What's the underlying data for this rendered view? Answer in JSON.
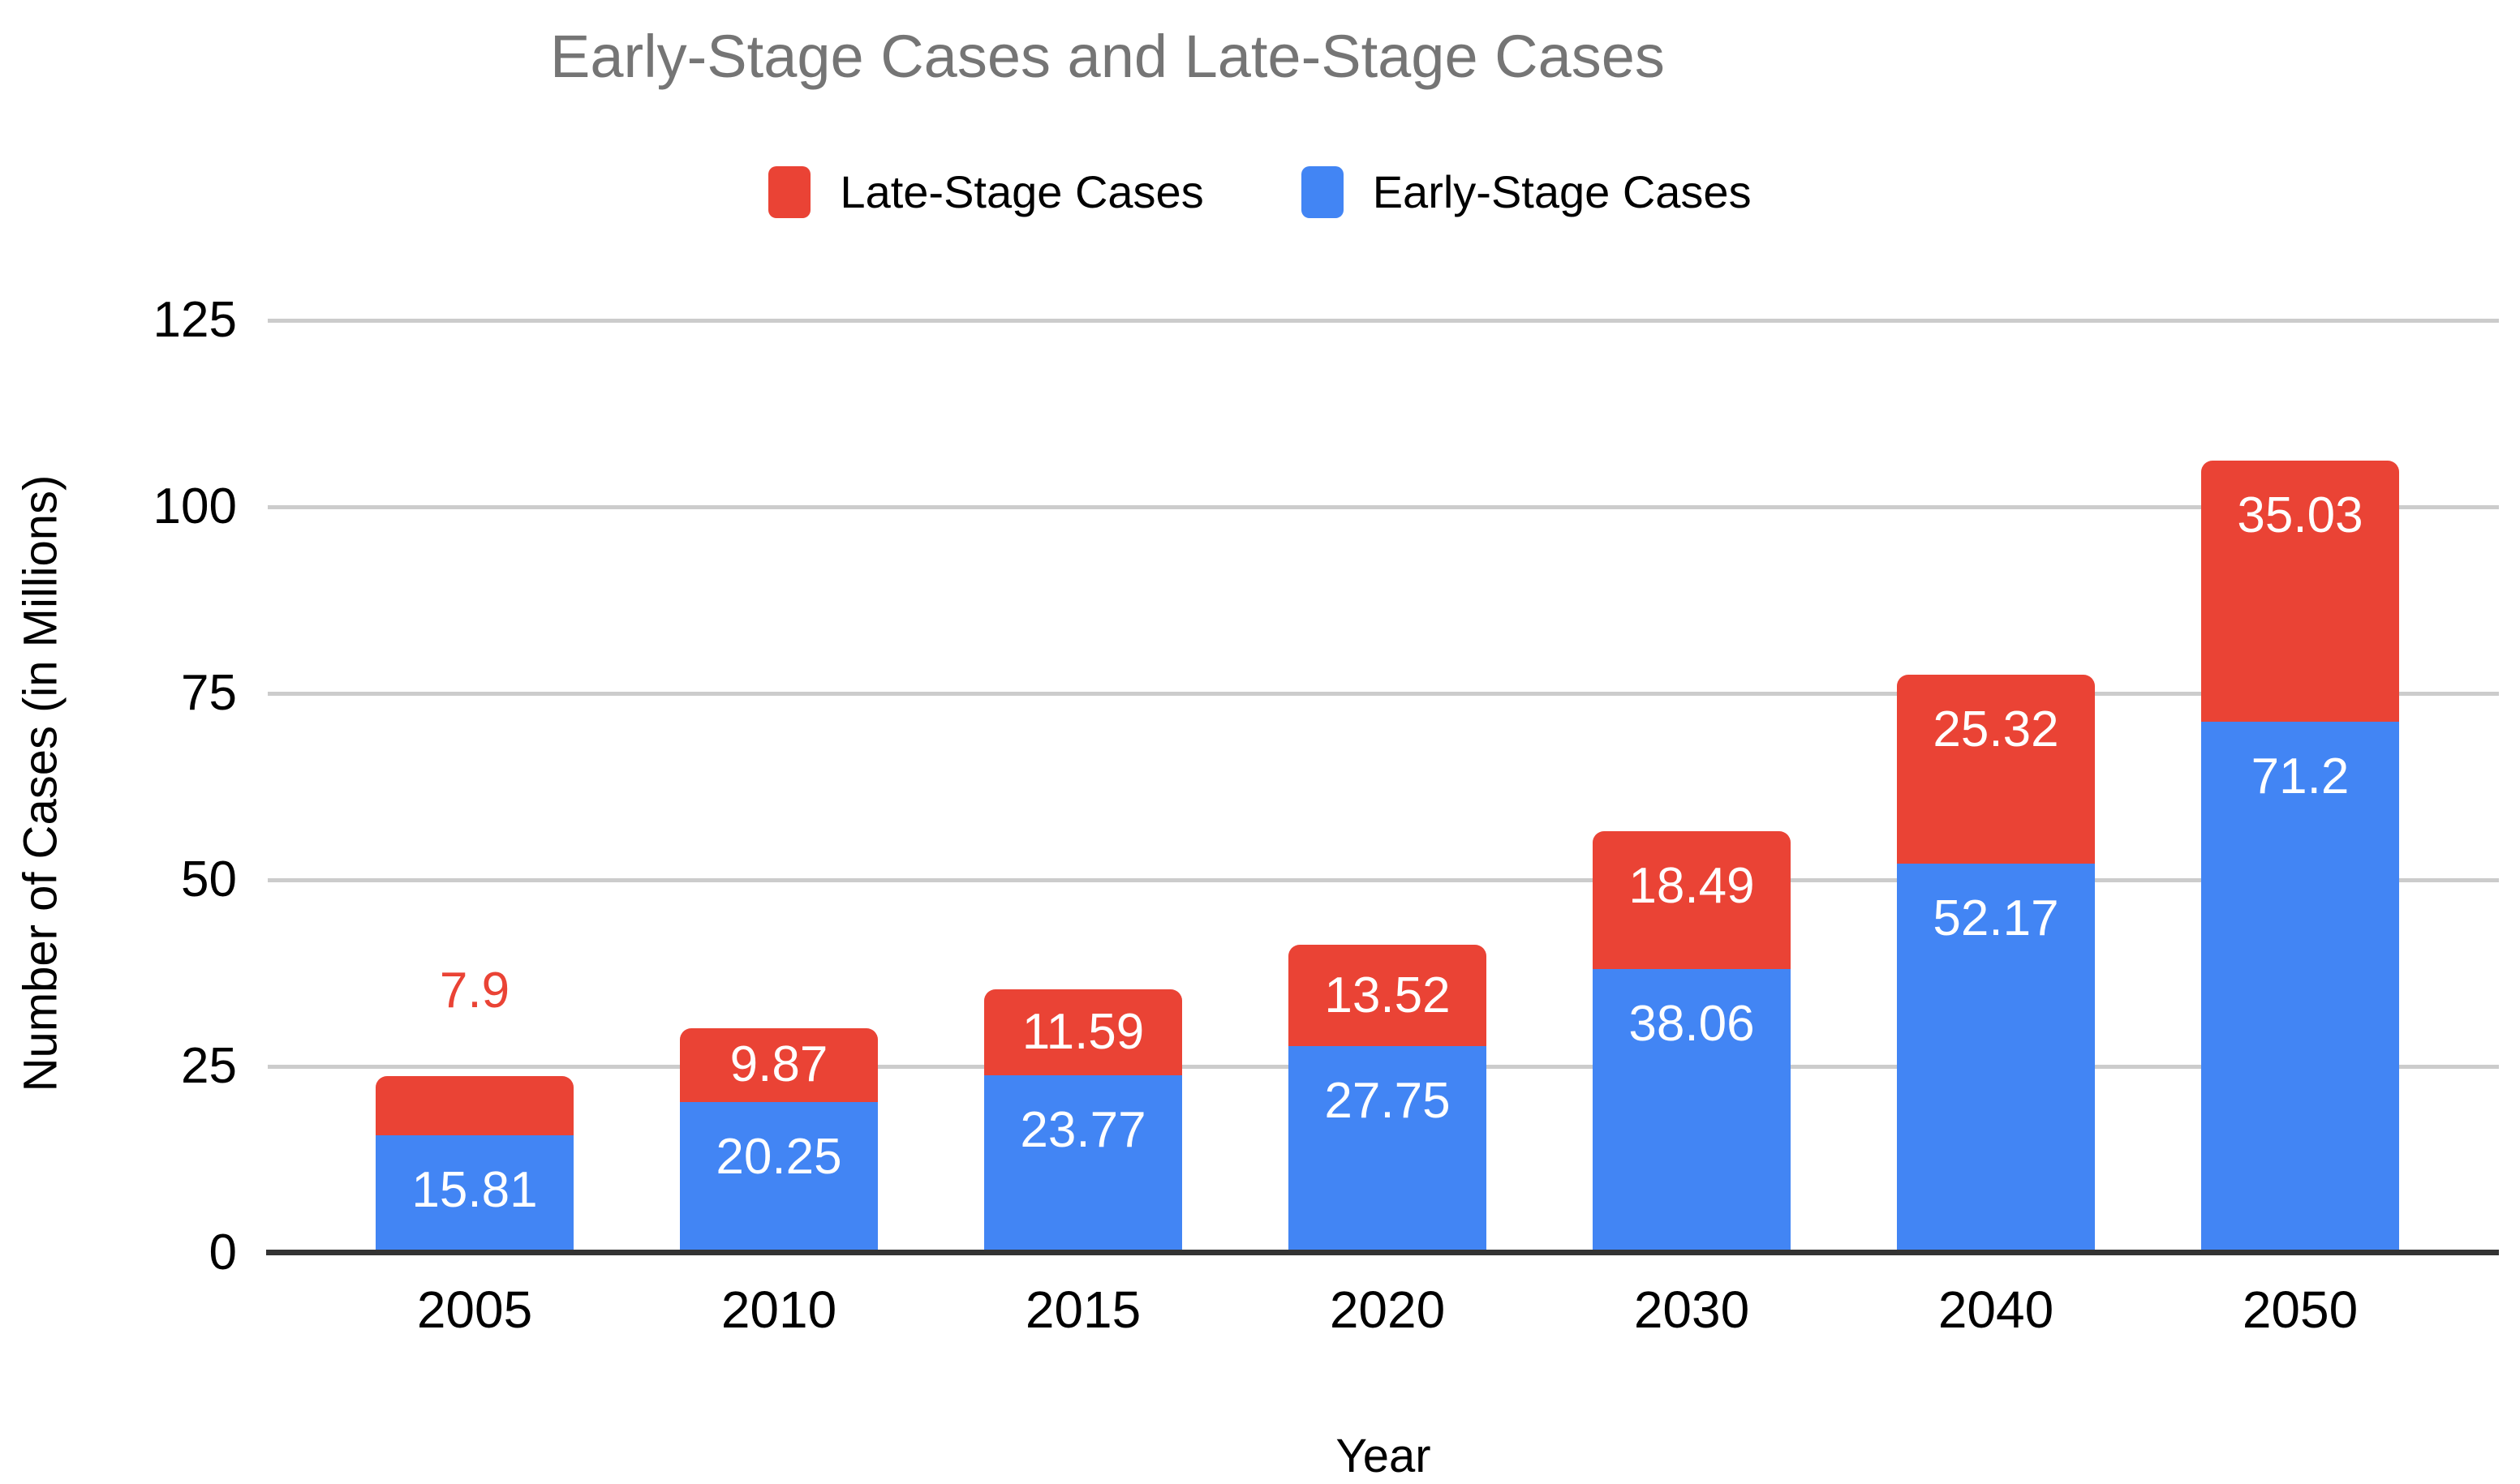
{
  "legend": [
    {
      "label": "Late-Stage Cases",
      "color": "#EA4335"
    },
    {
      "label": "Early-Stage Cases",
      "color": "#4285F4"
    }
  ],
  "colors": {
    "title_text": "#757575",
    "axis_text": "#000000",
    "gridline": "#cccccc",
    "baseline": "#333333",
    "late_stage": "#EA4335",
    "early_stage": "#4285F4",
    "label_inside": "#ffffff",
    "background": "#ffffff"
  },
  "chart_data": {
    "type": "bar",
    "stacked": true,
    "title": "Early-Stage Cases and Late-Stage Cases",
    "xlabel": "Year",
    "ylabel": "Number of Cases (in Millions)",
    "categories": [
      "2005",
      "2010",
      "2015",
      "2020",
      "2030",
      "2040",
      "2050"
    ],
    "series": [
      {
        "name": "Early-Stage Cases",
        "color": "#4285F4",
        "label_color": "#ffffff",
        "values": [
          15.81,
          20.25,
          23.77,
          27.75,
          38.06,
          52.17,
          71.2
        ]
      },
      {
        "name": "Late-Stage Cases",
        "color": "#EA4335",
        "label_color": "#ffffff",
        "values": [
          7.9,
          9.87,
          11.59,
          13.52,
          18.49,
          25.32,
          35.03
        ]
      }
    ],
    "totals": [
      23.71,
      30.12,
      35.36,
      41.27,
      56.55,
      77.49,
      106.23
    ],
    "yticks": [
      0,
      25,
      50,
      75,
      100,
      125
    ],
    "ylim": [
      0,
      125
    ],
    "grid": true,
    "legend_position": "top",
    "outside_labels": [
      {
        "category": "2005",
        "series": "Late-Stage Cases",
        "text": "7.9",
        "color": "#EA4335"
      }
    ]
  }
}
